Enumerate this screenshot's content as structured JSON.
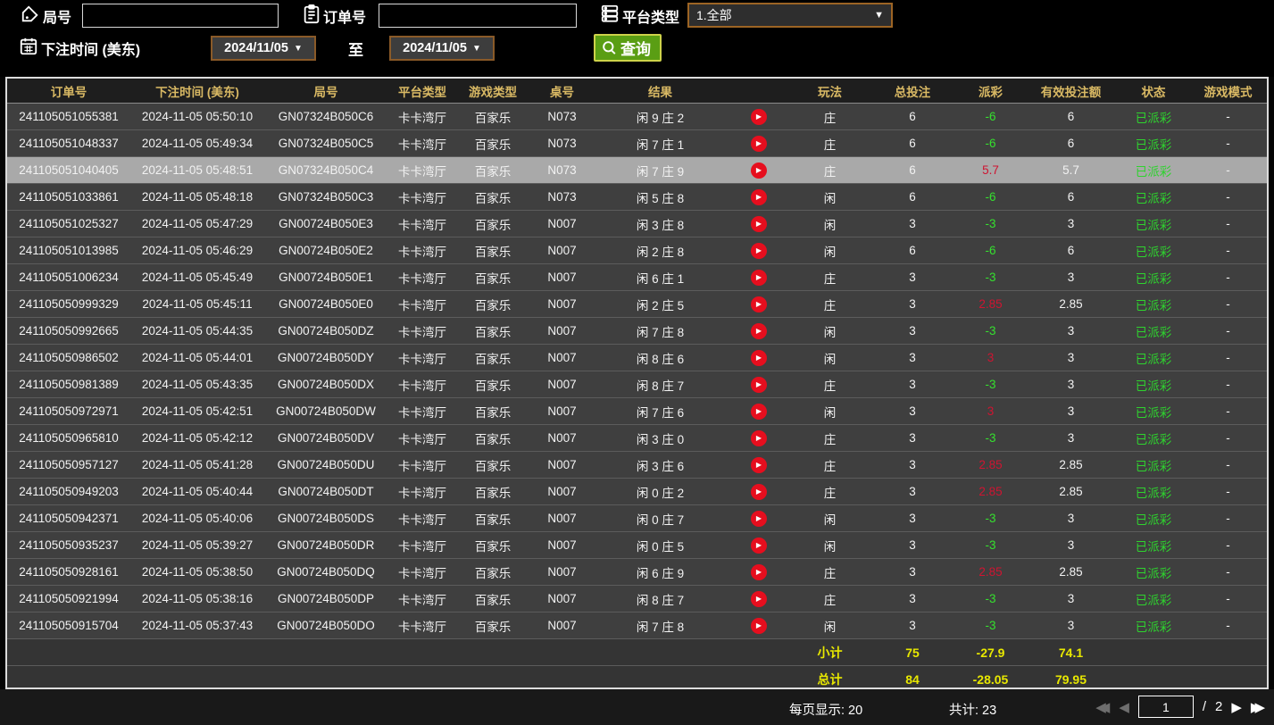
{
  "filters": {
    "round_label": "局号",
    "round_value": "",
    "order_label": "订单号",
    "order_value": "",
    "platform_label": "平台类型",
    "platform_value": "1.全部",
    "bet_time_label": "下注时间 (美东)",
    "date_from": "2024/11/05",
    "to_label": "至",
    "date_to": "2024/11/05",
    "search_label": "查询"
  },
  "table": {
    "columns": [
      "订单号",
      "下注时间 (美东)",
      "局号",
      "平台类型",
      "游戏类型",
      "桌号",
      "结果",
      "",
      "玩法",
      "总投注",
      "派彩",
      "有效投注额",
      "状态",
      "游戏模式"
    ],
    "rows": [
      {
        "order": "241105051055381",
        "time": "2024-11-05 05:50:10",
        "round": "GN07324B050C6",
        "platform": "卡卡湾厅",
        "game": "百家乐",
        "table": "N073",
        "result": "闲 9 庄 2",
        "bet_on": "庄",
        "total_bet": "6",
        "payout": "-6",
        "valid_bet": "6",
        "status": "已派彩",
        "mode": "-",
        "selected": false
      },
      {
        "order": "241105051048337",
        "time": "2024-11-05 05:49:34",
        "round": "GN07324B050C5",
        "platform": "卡卡湾厅",
        "game": "百家乐",
        "table": "N073",
        "result": "闲 7 庄 1",
        "bet_on": "庄",
        "total_bet": "6",
        "payout": "-6",
        "valid_bet": "6",
        "status": "已派彩",
        "mode": "-",
        "selected": false
      },
      {
        "order": "241105051040405",
        "time": "2024-11-05 05:48:51",
        "round": "GN07324B050C4",
        "platform": "卡卡湾厅",
        "game": "百家乐",
        "table": "N073",
        "result": "闲 7 庄 9",
        "bet_on": "庄",
        "total_bet": "6",
        "payout": "5.7",
        "valid_bet": "5.7",
        "status": "已派彩",
        "mode": "-",
        "selected": true
      },
      {
        "order": "241105051033861",
        "time": "2024-11-05 05:48:18",
        "round": "GN07324B050C3",
        "platform": "卡卡湾厅",
        "game": "百家乐",
        "table": "N073",
        "result": "闲 5 庄 8",
        "bet_on": "闲",
        "total_bet": "6",
        "payout": "-6",
        "valid_bet": "6",
        "status": "已派彩",
        "mode": "-",
        "selected": false
      },
      {
        "order": "241105051025327",
        "time": "2024-11-05 05:47:29",
        "round": "GN00724B050E3",
        "platform": "卡卡湾厅",
        "game": "百家乐",
        "table": "N007",
        "result": "闲 3 庄 8",
        "bet_on": "闲",
        "total_bet": "3",
        "payout": "-3",
        "valid_bet": "3",
        "status": "已派彩",
        "mode": "-",
        "selected": false
      },
      {
        "order": "241105051013985",
        "time": "2024-11-05 05:46:29",
        "round": "GN00724B050E2",
        "platform": "卡卡湾厅",
        "game": "百家乐",
        "table": "N007",
        "result": "闲 2 庄 8",
        "bet_on": "闲",
        "total_bet": "6",
        "payout": "-6",
        "valid_bet": "6",
        "status": "已派彩",
        "mode": "-",
        "selected": false
      },
      {
        "order": "241105051006234",
        "time": "2024-11-05 05:45:49",
        "round": "GN00724B050E1",
        "platform": "卡卡湾厅",
        "game": "百家乐",
        "table": "N007",
        "result": "闲 6 庄 1",
        "bet_on": "庄",
        "total_bet": "3",
        "payout": "-3",
        "valid_bet": "3",
        "status": "已派彩",
        "mode": "-",
        "selected": false
      },
      {
        "order": "241105050999329",
        "time": "2024-11-05 05:45:11",
        "round": "GN00724B050E0",
        "platform": "卡卡湾厅",
        "game": "百家乐",
        "table": "N007",
        "result": "闲 2 庄 5",
        "bet_on": "庄",
        "total_bet": "3",
        "payout": "2.85",
        "valid_bet": "2.85",
        "status": "已派彩",
        "mode": "-",
        "selected": false
      },
      {
        "order": "241105050992665",
        "time": "2024-11-05 05:44:35",
        "round": "GN00724B050DZ",
        "platform": "卡卡湾厅",
        "game": "百家乐",
        "table": "N007",
        "result": "闲 7 庄 8",
        "bet_on": "闲",
        "total_bet": "3",
        "payout": "-3",
        "valid_bet": "3",
        "status": "已派彩",
        "mode": "-",
        "selected": false
      },
      {
        "order": "241105050986502",
        "time": "2024-11-05 05:44:01",
        "round": "GN00724B050DY",
        "platform": "卡卡湾厅",
        "game": "百家乐",
        "table": "N007",
        "result": "闲 8 庄 6",
        "bet_on": "闲",
        "total_bet": "3",
        "payout": "3",
        "valid_bet": "3",
        "status": "已派彩",
        "mode": "-",
        "selected": false
      },
      {
        "order": "241105050981389",
        "time": "2024-11-05 05:43:35",
        "round": "GN00724B050DX",
        "platform": "卡卡湾厅",
        "game": "百家乐",
        "table": "N007",
        "result": "闲 8 庄 7",
        "bet_on": "庄",
        "total_bet": "3",
        "payout": "-3",
        "valid_bet": "3",
        "status": "已派彩",
        "mode": "-",
        "selected": false
      },
      {
        "order": "241105050972971",
        "time": "2024-11-05 05:42:51",
        "round": "GN00724B050DW",
        "platform": "卡卡湾厅",
        "game": "百家乐",
        "table": "N007",
        "result": "闲 7 庄 6",
        "bet_on": "闲",
        "total_bet": "3",
        "payout": "3",
        "valid_bet": "3",
        "status": "已派彩",
        "mode": "-",
        "selected": false
      },
      {
        "order": "241105050965810",
        "time": "2024-11-05 05:42:12",
        "round": "GN00724B050DV",
        "platform": "卡卡湾厅",
        "game": "百家乐",
        "table": "N007",
        "result": "闲 3 庄 0",
        "bet_on": "庄",
        "total_bet": "3",
        "payout": "-3",
        "valid_bet": "3",
        "status": "已派彩",
        "mode": "-",
        "selected": false
      },
      {
        "order": "241105050957127",
        "time": "2024-11-05 05:41:28",
        "round": "GN00724B050DU",
        "platform": "卡卡湾厅",
        "game": "百家乐",
        "table": "N007",
        "result": "闲 3 庄 6",
        "bet_on": "庄",
        "total_bet": "3",
        "payout": "2.85",
        "valid_bet": "2.85",
        "status": "已派彩",
        "mode": "-",
        "selected": false
      },
      {
        "order": "241105050949203",
        "time": "2024-11-05 05:40:44",
        "round": "GN00724B050DT",
        "platform": "卡卡湾厅",
        "game": "百家乐",
        "table": "N007",
        "result": "闲 0 庄 2",
        "bet_on": "庄",
        "total_bet": "3",
        "payout": "2.85",
        "valid_bet": "2.85",
        "status": "已派彩",
        "mode": "-",
        "selected": false
      },
      {
        "order": "241105050942371",
        "time": "2024-11-05 05:40:06",
        "round": "GN00724B050DS",
        "platform": "卡卡湾厅",
        "game": "百家乐",
        "table": "N007",
        "result": "闲 0 庄 7",
        "bet_on": "闲",
        "total_bet": "3",
        "payout": "-3",
        "valid_bet": "3",
        "status": "已派彩",
        "mode": "-",
        "selected": false
      },
      {
        "order": "241105050935237",
        "time": "2024-11-05 05:39:27",
        "round": "GN00724B050DR",
        "platform": "卡卡湾厅",
        "game": "百家乐",
        "table": "N007",
        "result": "闲 0 庄 5",
        "bet_on": "闲",
        "total_bet": "3",
        "payout": "-3",
        "valid_bet": "3",
        "status": "已派彩",
        "mode": "-",
        "selected": false
      },
      {
        "order": "241105050928161",
        "time": "2024-11-05 05:38:50",
        "round": "GN00724B050DQ",
        "platform": "卡卡湾厅",
        "game": "百家乐",
        "table": "N007",
        "result": "闲 6 庄 9",
        "bet_on": "庄",
        "total_bet": "3",
        "payout": "2.85",
        "valid_bet": "2.85",
        "status": "已派彩",
        "mode": "-",
        "selected": false
      },
      {
        "order": "241105050921994",
        "time": "2024-11-05 05:38:16",
        "round": "GN00724B050DP",
        "platform": "卡卡湾厅",
        "game": "百家乐",
        "table": "N007",
        "result": "闲 8 庄 7",
        "bet_on": "庄",
        "total_bet": "3",
        "payout": "-3",
        "valid_bet": "3",
        "status": "已派彩",
        "mode": "-",
        "selected": false
      },
      {
        "order": "241105050915704",
        "time": "2024-11-05 05:37:43",
        "round": "GN00724B050DO",
        "platform": "卡卡湾厅",
        "game": "百家乐",
        "table": "N007",
        "result": "闲 7 庄 8",
        "bet_on": "闲",
        "total_bet": "3",
        "payout": "-3",
        "valid_bet": "3",
        "status": "已派彩",
        "mode": "-",
        "selected": false
      }
    ],
    "subtotal": {
      "label": "小计",
      "total_bet": "75",
      "payout": "-27.9",
      "valid_bet": "74.1"
    },
    "total": {
      "label": "总计",
      "total_bet": "84",
      "payout": "-28.05",
      "valid_bet": "79.95"
    }
  },
  "footer": {
    "page_size_text": "每页显示: 20",
    "total_count_text": "共计: 23",
    "page_value": "1",
    "page_separator": "/",
    "total_pages": "2"
  },
  "colors": {
    "accent_gold": "#d9b964",
    "win_red": "#cf1431",
    "loss_green": "#35e02e",
    "status_green": "#2ed32e",
    "summary_yellow": "#e8e800",
    "search_green": "#5a9e14",
    "dropdown_border": "#9c6424"
  }
}
